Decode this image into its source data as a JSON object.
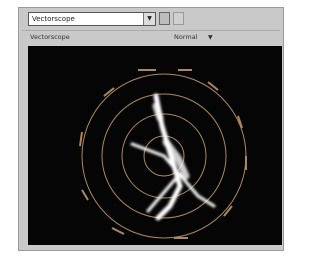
{
  "toolbar": {
    "dropdown": "Vectorscope"
  },
  "header": {
    "title": "Vectorscope",
    "mode": "Normal"
  }
}
